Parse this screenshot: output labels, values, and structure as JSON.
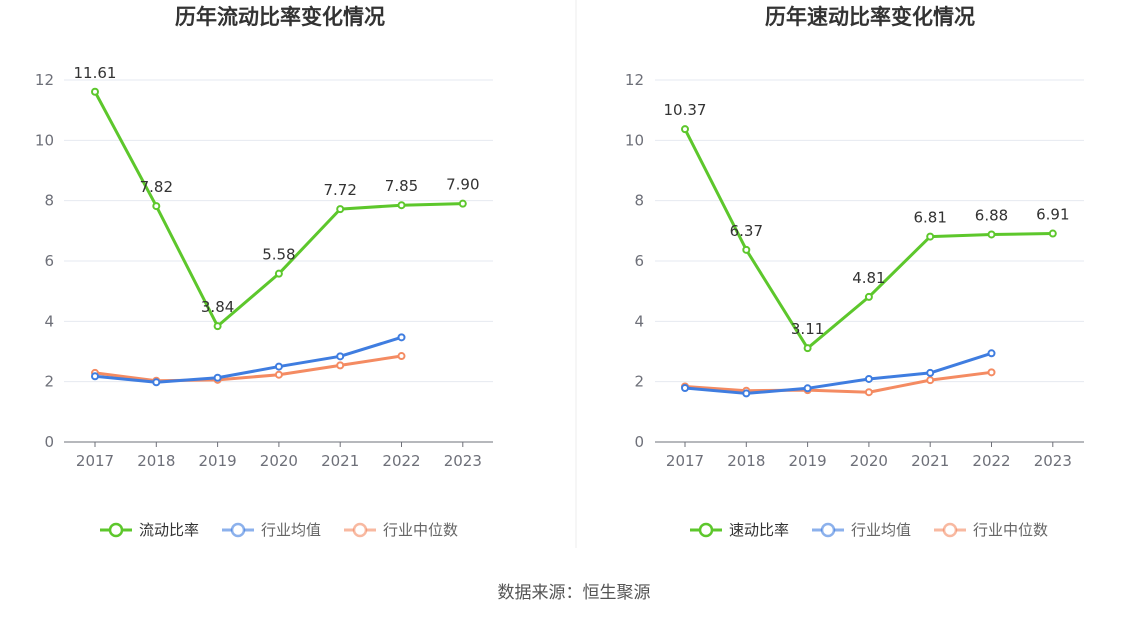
{
  "source": "数据来源：恒生聚源",
  "colors": {
    "main": "#5dc72c",
    "avg": "#3f7de0",
    "median": "#f48b62"
  },
  "chart_data": [
    {
      "type": "line",
      "title": "历年流动比率变化情况",
      "categories": [
        "2017",
        "2018",
        "2019",
        "2020",
        "2021",
        "2022",
        "2023"
      ],
      "ylim": [
        0,
        12
      ],
      "yticks": [
        0,
        2,
        4,
        6,
        8,
        10,
        12
      ],
      "grid": true,
      "legend_position": "bottom",
      "series": [
        {
          "name": "流动比率",
          "color": "#5dc72c",
          "labels": true,
          "values": [
            11.61,
            7.82,
            3.84,
            5.58,
            7.72,
            7.85,
            7.9
          ],
          "label_text": [
            "11.61",
            "7.82",
            "3.84",
            "5.58",
            "7.72",
            "7.85",
            "7.90"
          ]
        },
        {
          "name": "行业均值",
          "color": "#3f7de0",
          "labels": false,
          "values": [
            2.18,
            1.98,
            2.13,
            2.5,
            2.84,
            3.47,
            null
          ]
        },
        {
          "name": "行业中位数",
          "color": "#f48b62",
          "labels": false,
          "values": [
            2.29,
            2.03,
            2.06,
            2.23,
            2.54,
            2.85,
            null
          ]
        }
      ]
    },
    {
      "type": "line",
      "title": "历年速动比率变化情况",
      "categories": [
        "2017",
        "2018",
        "2019",
        "2020",
        "2021",
        "2022",
        "2023"
      ],
      "ylim": [
        0,
        12
      ],
      "yticks": [
        0,
        2,
        4,
        6,
        8,
        10,
        12
      ],
      "grid": true,
      "legend_position": "bottom",
      "series": [
        {
          "name": "速动比率",
          "color": "#5dc72c",
          "labels": true,
          "values": [
            10.37,
            6.37,
            3.11,
            4.81,
            6.81,
            6.88,
            6.91
          ],
          "label_text": [
            "10.37",
            "6.37",
            "3.11",
            "4.81",
            "6.81",
            "6.88",
            "6.91"
          ]
        },
        {
          "name": "行业均值",
          "color": "#3f7de0",
          "labels": false,
          "values": [
            1.79,
            1.61,
            1.78,
            2.09,
            2.29,
            2.94,
            null
          ]
        },
        {
          "name": "行业中位数",
          "color": "#f48b62",
          "labels": false,
          "values": [
            1.84,
            1.7,
            1.72,
            1.65,
            2.05,
            2.31,
            null
          ]
        }
      ]
    }
  ]
}
